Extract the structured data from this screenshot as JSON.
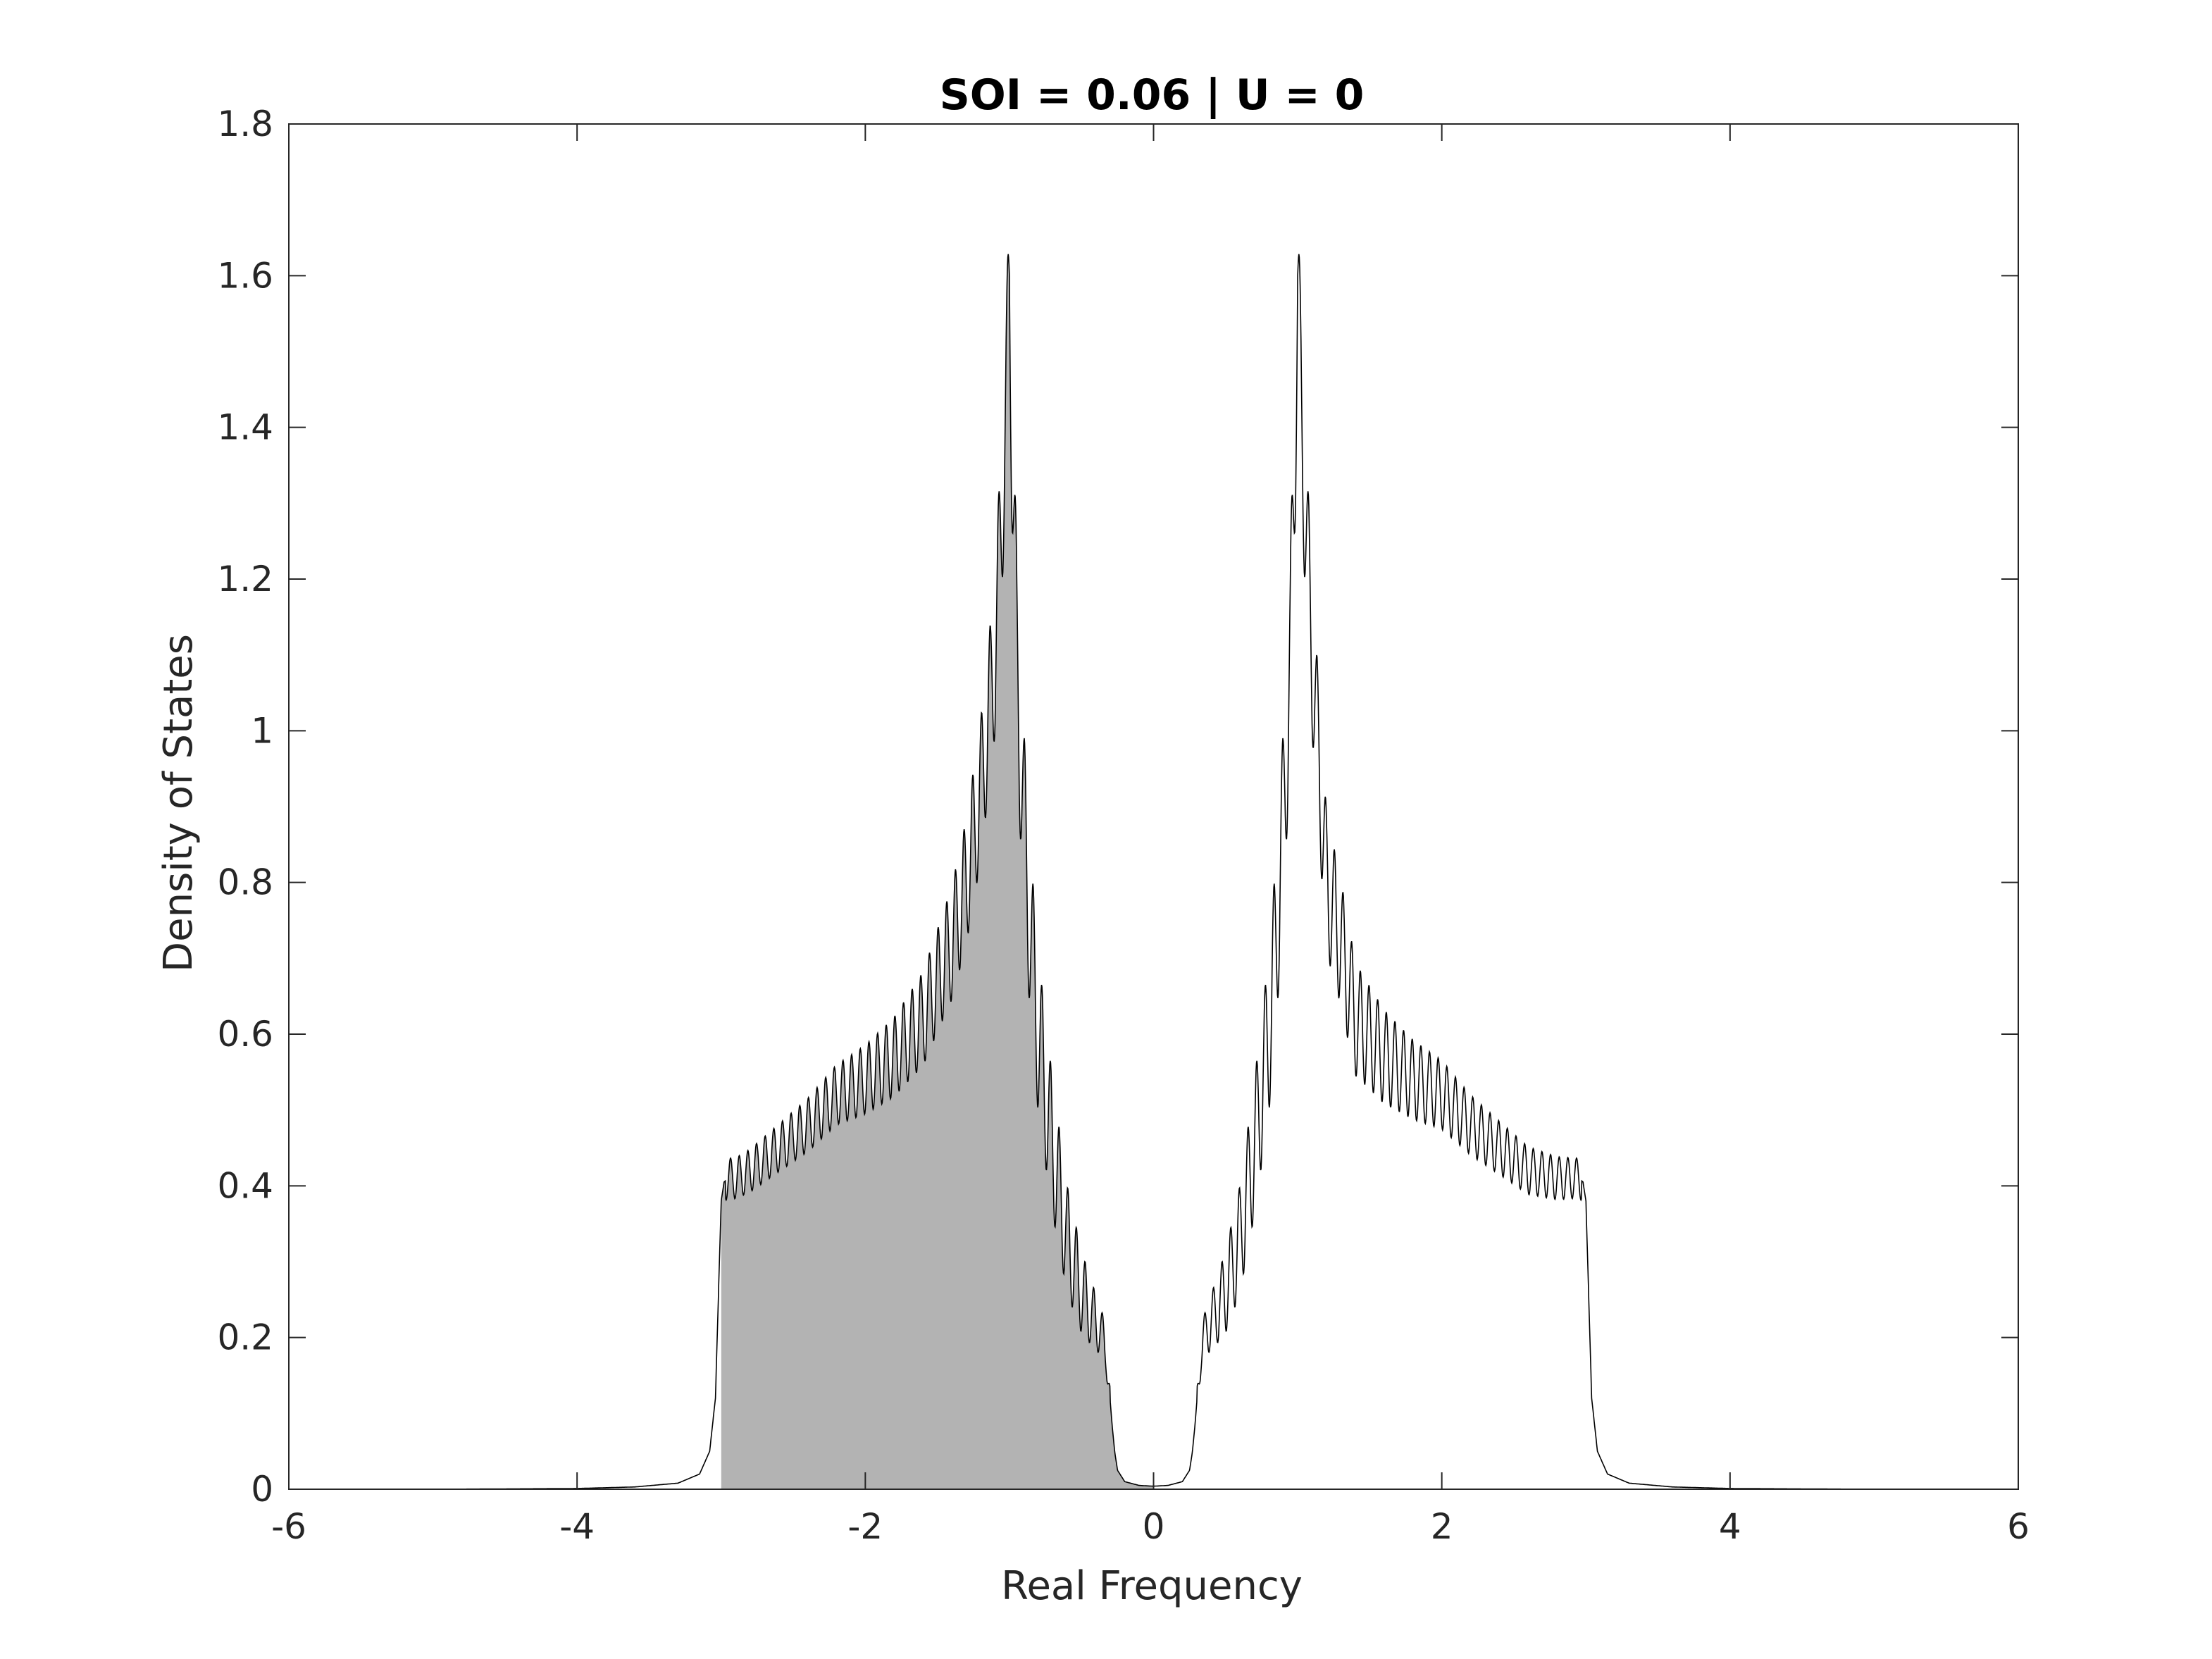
{
  "chart_data": {
    "type": "area",
    "title": "SOI = 0.06 | U = 0",
    "xlabel": "Real Frequency",
    "ylabel": "Density of States",
    "xlim": [
      -6,
      6
    ],
    "ylim": [
      0,
      1.8
    ],
    "xticks": [
      -6,
      -4,
      -2,
      0,
      2,
      4,
      6
    ],
    "xtick_labels": [
      "-6",
      "-4",
      "-2",
      "0",
      "2",
      "4",
      "6"
    ],
    "yticks": [
      0,
      0.2,
      0.4,
      0.6,
      0.8,
      1,
      1.2,
      1.4,
      1.6,
      1.8
    ],
    "ytick_labels": [
      "0",
      "0.2",
      "0.4",
      "0.6",
      "0.8",
      "1",
      "1.2",
      "1.4",
      "1.6",
      "1.8"
    ],
    "grid": false,
    "filled_region": [
      -3.0,
      0.0
    ],
    "colors": {
      "line": "#000000",
      "fill": "#b3b3b3",
      "axes": "#262626",
      "background": "#ffffff"
    },
    "x": [
      -5.0,
      -4.0,
      -3.6,
      -3.3,
      -3.15,
      -3.08,
      -3.04,
      -3.02,
      -3.0,
      -2.98,
      -2.95,
      -2.9,
      -2.8,
      -2.6,
      -2.4,
      -2.2,
      -2.0,
      -1.8,
      -1.6,
      -1.4,
      -1.3,
      -1.2,
      -1.1,
      -1.05,
      -1.02,
      -1.0,
      -0.98,
      -0.95,
      -0.9,
      -0.85,
      -0.8,
      -0.7,
      -0.6,
      -0.5,
      -0.4,
      -0.37,
      -0.35,
      -0.33,
      -0.31,
      -0.29,
      -0.27,
      -0.25,
      -0.2,
      -0.1,
      0.0,
      0.1,
      0.2,
      0.25,
      0.27,
      0.29,
      0.31,
      0.33,
      0.35,
      0.37,
      0.4,
      0.5,
      0.6,
      0.7,
      0.8,
      0.85,
      0.9,
      0.95,
      0.98,
      1.0,
      1.02,
      1.05,
      1.1,
      1.2,
      1.3,
      1.4,
      1.6,
      1.8,
      2.0,
      2.2,
      2.4,
      2.6,
      2.8,
      2.9,
      2.95,
      2.98,
      3.0,
      3.02,
      3.04,
      3.08,
      3.15,
      3.3,
      3.6,
      4.0,
      5.0
    ],
    "y": [
      0.0,
      0.001,
      0.003,
      0.008,
      0.02,
      0.05,
      0.12,
      0.25,
      0.38,
      0.405,
      0.41,
      0.41,
      0.42,
      0.45,
      0.48,
      0.52,
      0.54,
      0.57,
      0.62,
      0.72,
      0.8,
      0.92,
      1.1,
      1.3,
      1.45,
      1.6,
      1.38,
      1.1,
      0.88,
      0.72,
      0.6,
      0.45,
      0.33,
      0.26,
      0.22,
      0.21,
      0.2,
      0.18,
      0.14,
      0.09,
      0.05,
      0.025,
      0.01,
      0.005,
      0.004,
      0.005,
      0.01,
      0.025,
      0.05,
      0.09,
      0.14,
      0.18,
      0.2,
      0.21,
      0.22,
      0.26,
      0.33,
      0.45,
      0.6,
      0.72,
      0.88,
      1.1,
      1.38,
      1.6,
      1.45,
      1.3,
      1.1,
      0.8,
      0.72,
      0.62,
      0.57,
      0.54,
      0.52,
      0.48,
      0.45,
      0.42,
      0.41,
      0.41,
      0.41,
      0.405,
      0.38,
      0.25,
      0.12,
      0.05,
      0.02,
      0.008,
      0.003,
      0.001,
      0.0
    ]
  }
}
